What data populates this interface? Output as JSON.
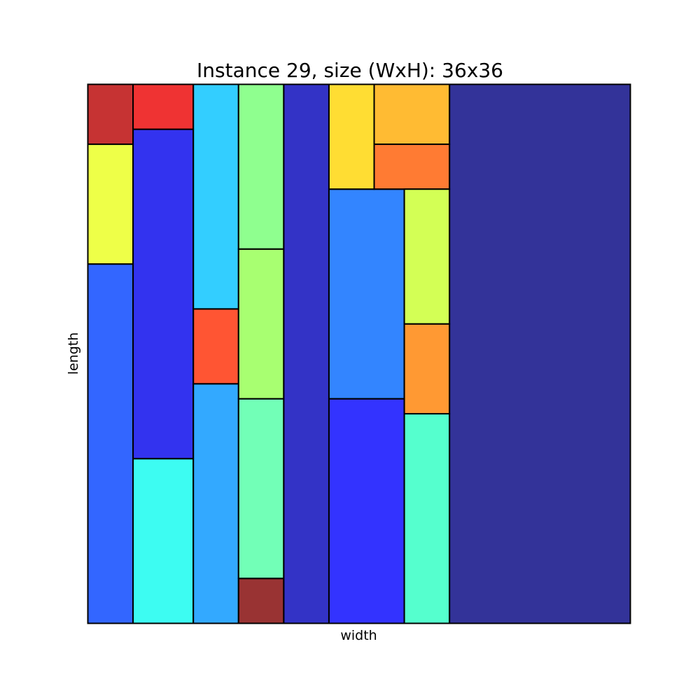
{
  "chart_data": {
    "type": "rectangle-packing",
    "title": "Instance 29, size (WxH): 36x36",
    "xlabel": "width",
    "ylabel": "length",
    "xlim": [
      0,
      36
    ],
    "ylim": [
      0,
      36
    ],
    "grid": false,
    "rectangles": [
      {
        "x": 0,
        "y": 0,
        "w": 3,
        "h": 24,
        "color": "#0040ff"
      },
      {
        "x": 0,
        "y": 24,
        "w": 3,
        "h": 8,
        "color": "#eaff1a"
      },
      {
        "x": 0,
        "y": 32,
        "w": 3,
        "h": 4,
        "color": "#b80000"
      },
      {
        "x": 3,
        "y": 0,
        "w": 4,
        "h": 11,
        "color": "#0dfbef"
      },
      {
        "x": 3,
        "y": 11,
        "w": 4,
        "h": 22,
        "color": "#0000eb"
      },
      {
        "x": 3,
        "y": 33,
        "w": 4,
        "h": 3,
        "color": "#eb0000"
      },
      {
        "x": 7,
        "y": 0,
        "w": 3,
        "h": 16,
        "color": "#0094ff"
      },
      {
        "x": 7,
        "y": 16,
        "w": 3,
        "h": 5,
        "color": "#ff2a00"
      },
      {
        "x": 7,
        "y": 21,
        "w": 3,
        "h": 15,
        "color": "#00c2ff"
      },
      {
        "x": 10,
        "y": 0,
        "w": 3,
        "h": 3,
        "color": "#800000"
      },
      {
        "x": 10,
        "y": 3,
        "w": 3,
        "h": 12,
        "color": "#4fffa5"
      },
      {
        "x": 10,
        "y": 15,
        "w": 3,
        "h": 10,
        "color": "#92ff4d"
      },
      {
        "x": 10,
        "y": 25,
        "w": 3,
        "h": 11,
        "color": "#73ff73"
      },
      {
        "x": 13,
        "y": 0,
        "w": 3,
        "h": 36,
        "color": "#0000b8"
      },
      {
        "x": 16,
        "y": 0,
        "w": 5,
        "h": 15,
        "color": "#0000ff"
      },
      {
        "x": 16,
        "y": 15,
        "w": 5,
        "h": 14,
        "color": "#0066ff"
      },
      {
        "x": 16,
        "y": 29,
        "w": 3,
        "h": 7,
        "color": "#ffd400"
      },
      {
        "x": 19,
        "y": 29,
        "w": 5,
        "h": 3,
        "color": "#ff5a00"
      },
      {
        "x": 19,
        "y": 32,
        "w": 5,
        "h": 4,
        "color": "#ffaa00"
      },
      {
        "x": 21,
        "y": 0,
        "w": 3,
        "h": 14,
        "color": "#2affc2"
      },
      {
        "x": 21,
        "y": 14,
        "w": 3,
        "h": 6,
        "color": "#ff8000"
      },
      {
        "x": 21,
        "y": 20,
        "w": 3,
        "h": 9,
        "color": "#c8ff2a"
      },
      {
        "x": 24,
        "y": 0,
        "w": 12,
        "h": 36,
        "color": "#000080"
      }
    ]
  }
}
